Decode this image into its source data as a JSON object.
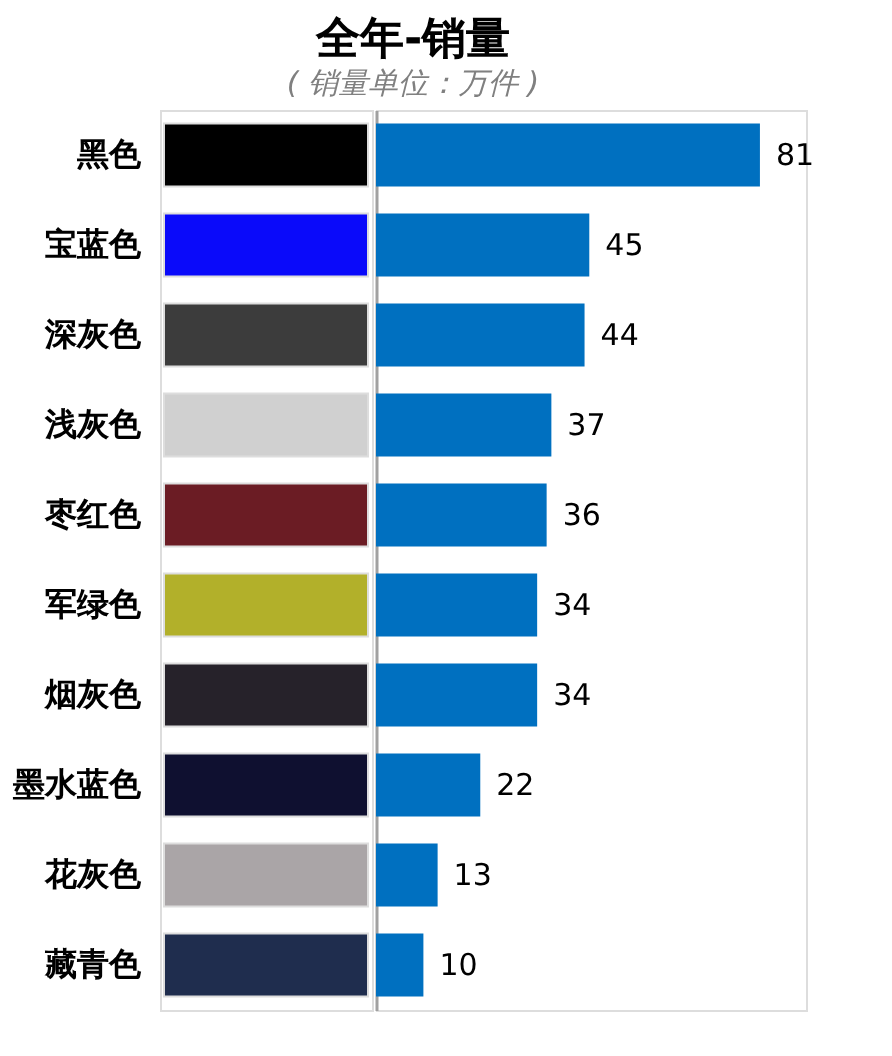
{
  "chart_data": [
    {
      "type": "other",
      "colors": [
        "#000000",
        "#0a0afa",
        "#3c3c3c",
        "#d0d0d0",
        "#6b1c24",
        "#b2b02a",
        "#26222a",
        "#0f1030",
        "#aaa5a7",
        "#1f2d4e"
      ]
    },
    {
      "type": "bar",
      "orientation": "horizontal",
      "title": "全年-销量",
      "subtitle": "( 销量单位：万件 )",
      "categories": [
        "黑色",
        "宝蓝色",
        "深灰色",
        "浅灰色",
        "枣红色",
        "军绿色",
        "烟灰色",
        "墨水蓝色",
        "花灰色",
        "藏青色"
      ],
      "values": [
        81,
        45,
        44,
        37,
        36,
        34,
        34,
        22,
        13,
        10
      ],
      "color": "#0070c0",
      "data_labels": true,
      "grid": false
    }
  ]
}
